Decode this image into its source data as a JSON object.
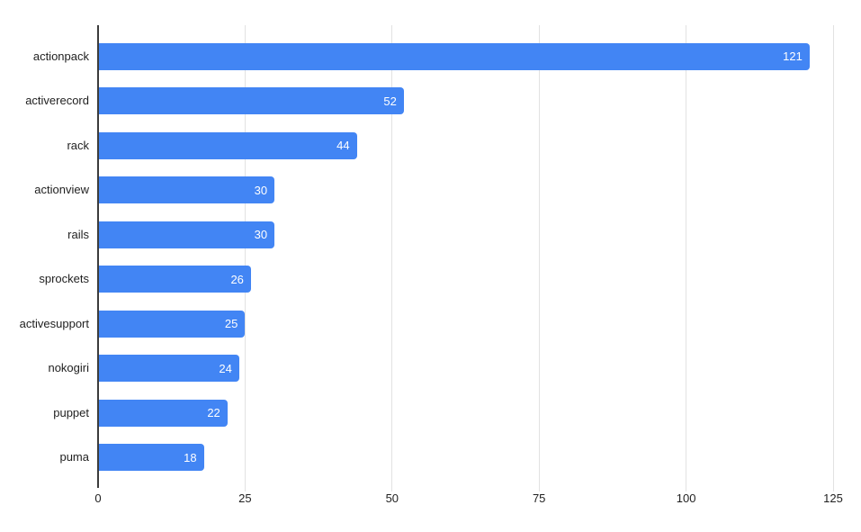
{
  "chart_data": {
    "type": "bar",
    "orientation": "horizontal",
    "title": "",
    "xlabel": "",
    "ylabel": "",
    "categories": [
      "actionpack",
      "activerecord",
      "rack",
      "actionview",
      "rails",
      "sprockets",
      "activesupport",
      "nokogiri",
      "puppet",
      "puma"
    ],
    "values": [
      121,
      52,
      44,
      30,
      30,
      26,
      25,
      24,
      22,
      18
    ],
    "xlim": [
      0,
      125
    ],
    "xticks": [
      0,
      25,
      50,
      75,
      100,
      125
    ],
    "grid": true,
    "legend": "none",
    "value_labels": "inside-end",
    "bar_color": "#4285f4",
    "value_label_color": "#ffffff",
    "axis_color": "#3c3c3c",
    "gridline_color": "#e2e2e2",
    "tick_label_color": "#1f1f1f",
    "category_label_color": "#1f1f1f",
    "background_color": "#ffffff"
  }
}
